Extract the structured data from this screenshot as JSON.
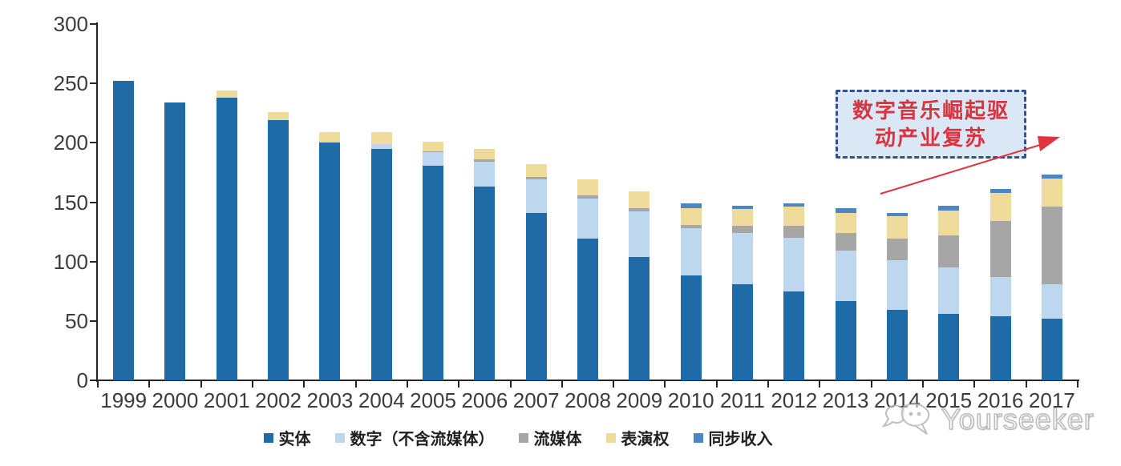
{
  "chart_data": {
    "type": "bar",
    "stacked": true,
    "categories": [
      "1999",
      "2000",
      "2001",
      "2002",
      "2003",
      "2004",
      "2005",
      "2006",
      "2007",
      "2008",
      "2009",
      "2010",
      "2011",
      "2012",
      "2013",
      "2014",
      "2015",
      "2016",
      "2017"
    ],
    "series": [
      {
        "name": "实体",
        "color": "#1f6ba8",
        "values": [
          252,
          234,
          238,
          219,
          200,
          195,
          181,
          163,
          141,
          119,
          104,
          88,
          81,
          75,
          67,
          59,
          56,
          54,
          52
        ]
      },
      {
        "name": "数字（不含流媒体）",
        "color": "#bdd7ee",
        "values": [
          0,
          0,
          0,
          0,
          1,
          4,
          11,
          21,
          28,
          34,
          38,
          40,
          43,
          45,
          42,
          42,
          39,
          33,
          29
        ]
      },
      {
        "name": "流媒体",
        "color": "#a6a6a6",
        "values": [
          0,
          0,
          0,
          0,
          0,
          0,
          1,
          2,
          2,
          3,
          3,
          3,
          6,
          10,
          15,
          18,
          27,
          47,
          65
        ]
      },
      {
        "name": "表演权",
        "color": "#efdc9b",
        "values": [
          0,
          0,
          6,
          7,
          8,
          10,
          8,
          9,
          11,
          13,
          14,
          14,
          14,
          16,
          17,
          19,
          21,
          24,
          24
        ]
      },
      {
        "name": "同步收入",
        "color": "#4e86c3",
        "values": [
          0,
          0,
          0,
          0,
          0,
          0,
          0,
          0,
          0,
          0,
          0,
          4,
          3,
          3,
          4,
          3,
          4,
          3,
          3
        ]
      }
    ],
    "ylim": [
      0,
      300
    ],
    "y_tick_step": 50,
    "y_ticks": [
      "0",
      "50",
      "100",
      "150",
      "200",
      "250",
      "300"
    ],
    "grid": false,
    "legend_position": "bottom"
  },
  "annotation": {
    "line1": "数字音乐崛起驱",
    "line2": "动产业复苏",
    "text_color": "#d8333f",
    "box_fill": "#dae7f4",
    "border_color": "#34508e",
    "arrow_color": "#e0343f"
  },
  "watermark": {
    "logo_icon": "chat-bubbles-logo-icon",
    "text": "Yourseeker",
    "color": "#b0b0b0"
  }
}
